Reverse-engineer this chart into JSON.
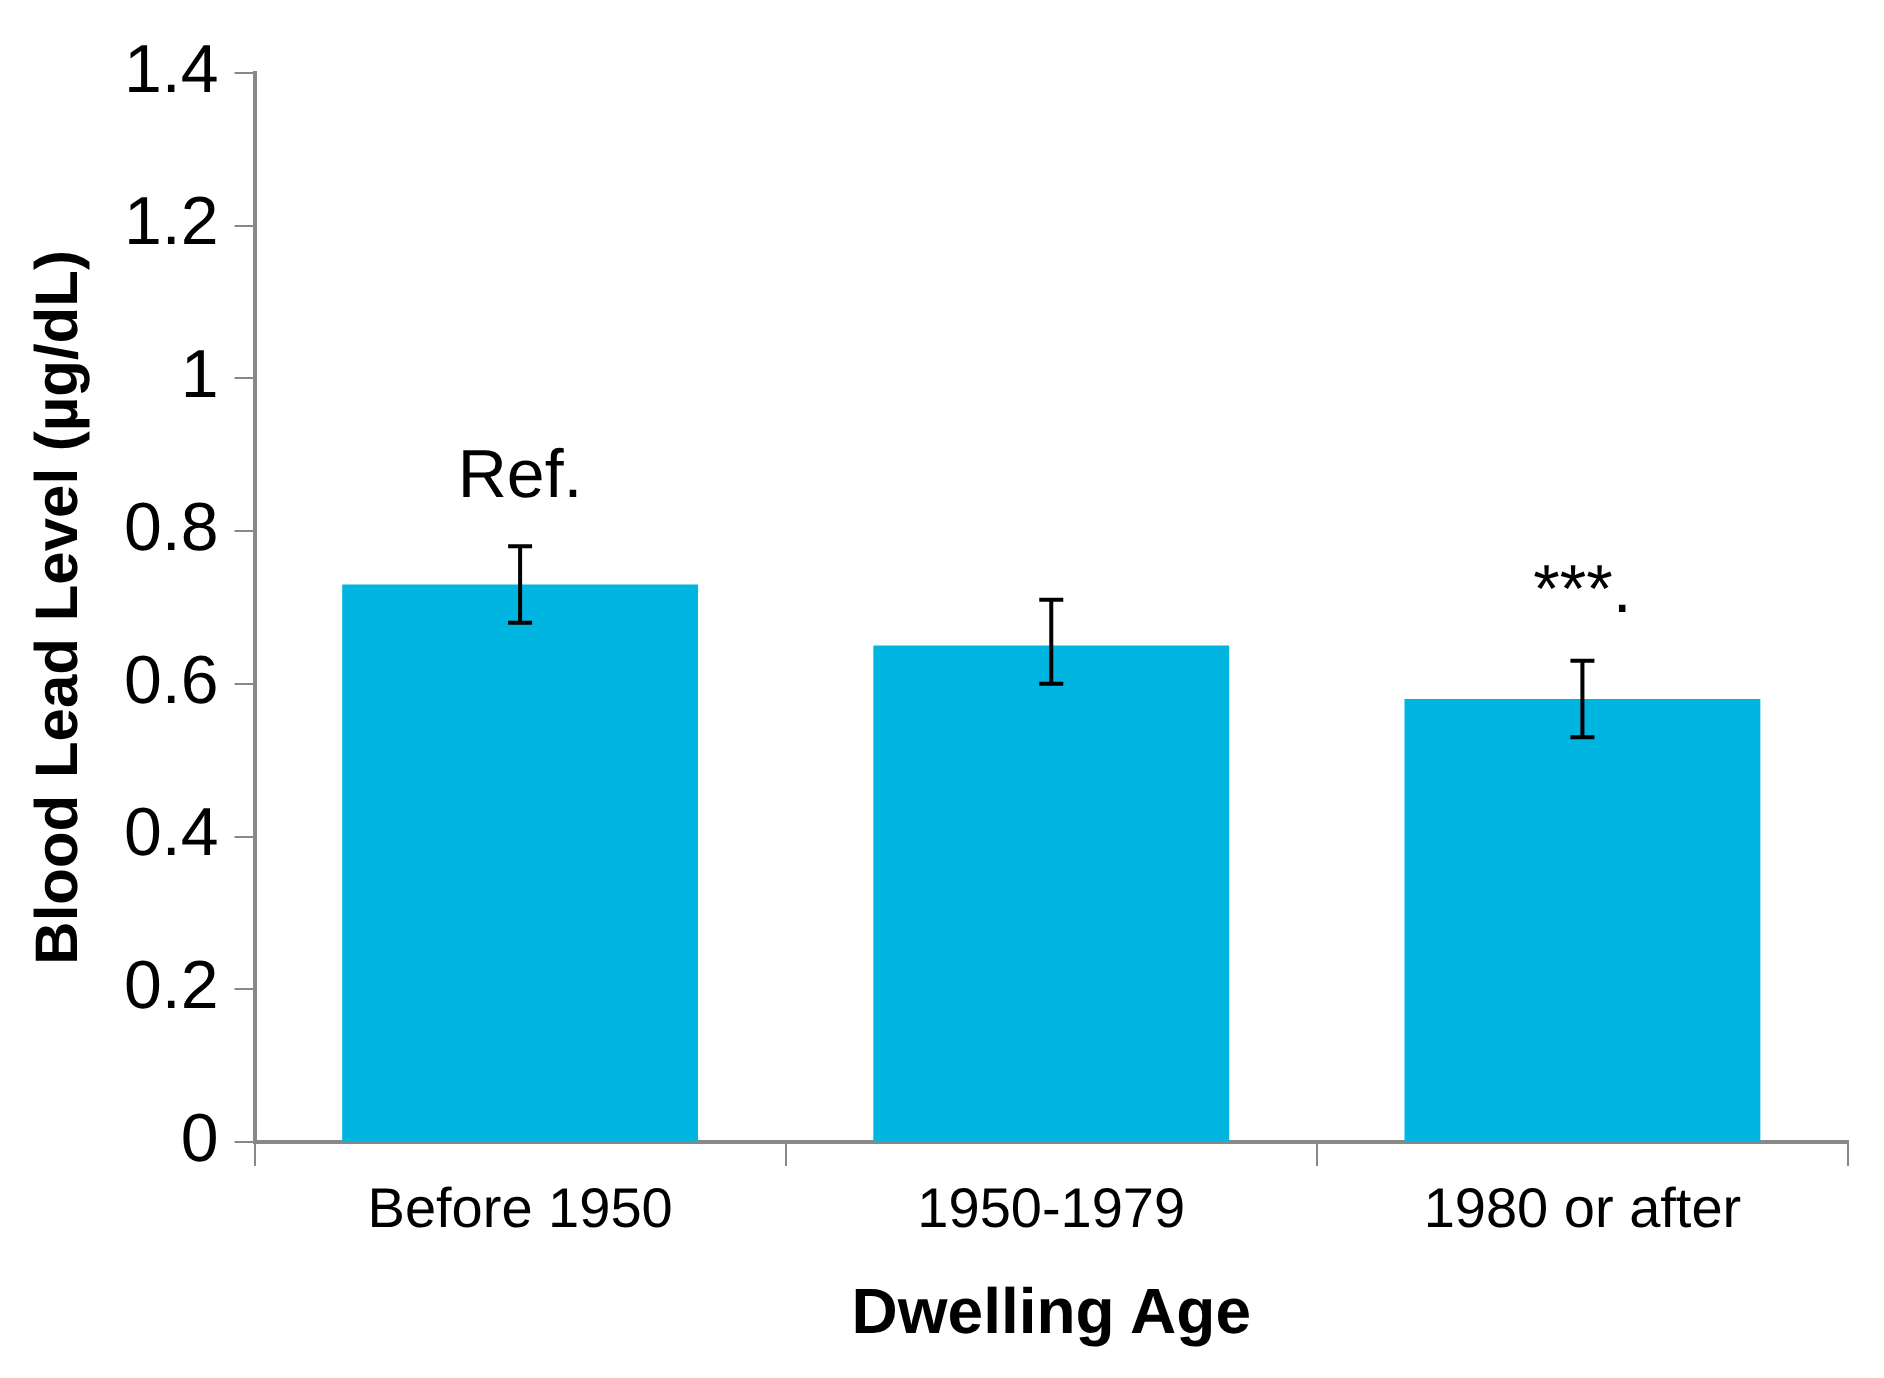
{
  "chart_data": {
    "type": "bar",
    "xlabel": "Dwelling Age",
    "ylabel": "Blood Lead Level (µg/dL)",
    "categories": [
      "Before 1950",
      "1950-1979",
      "1980 or after"
    ],
    "values": [
      0.73,
      0.65,
      0.58
    ],
    "errors": [
      0.05,
      [
        0.6,
        0.71
      ],
      0.05
    ],
    "color": "#00b6e0",
    "ylim": [
      0,
      1.4
    ],
    "yticks": [
      0,
      0.2,
      0.4,
      0.6,
      0.8,
      1,
      1.2,
      1.4
    ],
    "grid": false,
    "legend": false,
    "value_labels": [
      "Ref.",
      null,
      "***."
    ]
  }
}
